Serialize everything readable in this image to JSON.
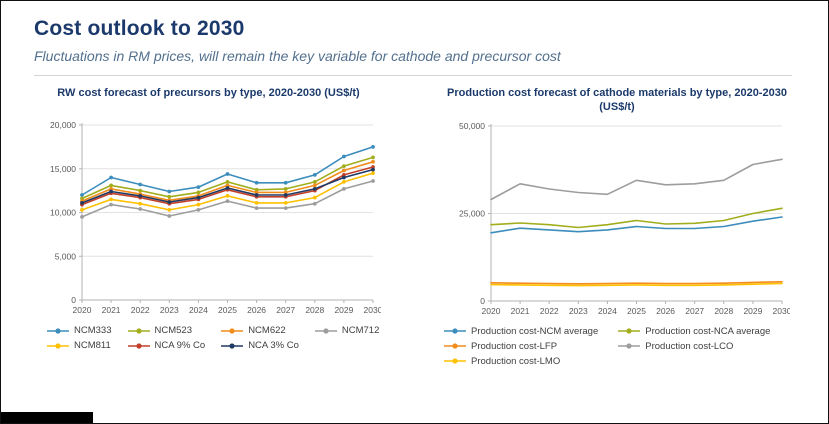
{
  "header": {
    "title": "Cost outlook to 2030",
    "subtitle": "Fluctuations in RM prices, will remain the key variable for cathode and precursor cost"
  },
  "chart_data": [
    {
      "type": "line",
      "title": "RW cost forecast of precursors by type, 2020-2030 (US$/t)",
      "x": [
        "2020",
        "2021",
        "2022",
        "2023",
        "2024",
        "2025",
        "2026",
        "2027",
        "2028",
        "2029",
        "2030"
      ],
      "ylim": [
        0,
        20000
      ],
      "ytick_values": [
        0,
        5000,
        10000,
        15000,
        20000
      ],
      "ytick_labels": [
        "0",
        "5,000",
        "10,000",
        "15,000",
        "20,000"
      ],
      "grid": true,
      "markers": true,
      "legend_position": "bottom",
      "series": [
        {
          "name": "NCM333",
          "color": "#3c8dbc",
          "values": [
            12000,
            14000,
            13200,
            12400,
            12900,
            14400,
            13400,
            13400,
            14300,
            16400,
            17500
          ]
        },
        {
          "name": "NCM523",
          "color": "#a2ad1c",
          "values": [
            11600,
            13100,
            12500,
            11800,
            12300,
            13500,
            12600,
            12700,
            13500,
            15300,
            16300
          ]
        },
        {
          "name": "NCM622",
          "color": "#f28c1c",
          "values": [
            11300,
            12700,
            12100,
            11400,
            11900,
            13100,
            12300,
            12300,
            13100,
            14800,
            15800
          ]
        },
        {
          "name": "NCM712",
          "color": "#9d9d9d",
          "values": [
            9500,
            10900,
            10400,
            9600,
            10300,
            11300,
            10500,
            10500,
            11000,
            12700,
            13600
          ]
        },
        {
          "name": "NCM811",
          "color": "#ffc000",
          "values": [
            10300,
            11500,
            11000,
            10300,
            10900,
            11900,
            11100,
            11100,
            11700,
            13500,
            14500
          ]
        },
        {
          "name": "NCA 9% Co",
          "color": "#c3402b",
          "values": [
            10900,
            12200,
            11700,
            11000,
            11500,
            12600,
            11800,
            11800,
            12500,
            14300,
            15200
          ]
        },
        {
          "name": "NCA 3% Co",
          "color": "#1f3a63",
          "values": [
            11100,
            12400,
            11900,
            11200,
            11700,
            12800,
            12000,
            12000,
            12700,
            14000,
            14900
          ]
        }
      ]
    },
    {
      "type": "line",
      "title": "Production cost forecast of cathode materials by type, 2020-2030 (US$/t)",
      "x": [
        "2020",
        "2021",
        "2022",
        "2023",
        "2024",
        "2025",
        "2026",
        "2027",
        "2028",
        "2029",
        "2030"
      ],
      "ylim": [
        0,
        50000
      ],
      "ytick_values": [
        0,
        25000,
        50000
      ],
      "ytick_labels": [
        "0",
        "25,000",
        "50,000"
      ],
      "grid": true,
      "markers": false,
      "legend_position": "bottom",
      "series": [
        {
          "name": "Production cost-NCM average",
          "color": "#3c8dbc",
          "values": [
            19500,
            20800,
            20300,
            19800,
            20300,
            21300,
            20700,
            20700,
            21300,
            22800,
            24000
          ]
        },
        {
          "name": "Production cost-NCA average",
          "color": "#a2ad1c",
          "values": [
            21800,
            22300,
            21800,
            21000,
            21800,
            23000,
            22000,
            22200,
            23000,
            25000,
            26500
          ]
        },
        {
          "name": "Production cost-LFP",
          "color": "#f28c1c",
          "values": [
            5200,
            5100,
            5000,
            4900,
            5000,
            5100,
            5000,
            5000,
            5100,
            5300,
            5500
          ]
        },
        {
          "name": "Production cost-LCO",
          "color": "#9d9d9d",
          "values": [
            29000,
            33500,
            32000,
            31000,
            30500,
            34500,
            33200,
            33500,
            34500,
            39000,
            40500
          ]
        },
        {
          "name": "Production cost-LMO",
          "color": "#ffc000",
          "values": [
            4700,
            4600,
            4500,
            4400,
            4500,
            4600,
            4500,
            4500,
            4600,
            4800,
            5000
          ]
        }
      ]
    }
  ]
}
